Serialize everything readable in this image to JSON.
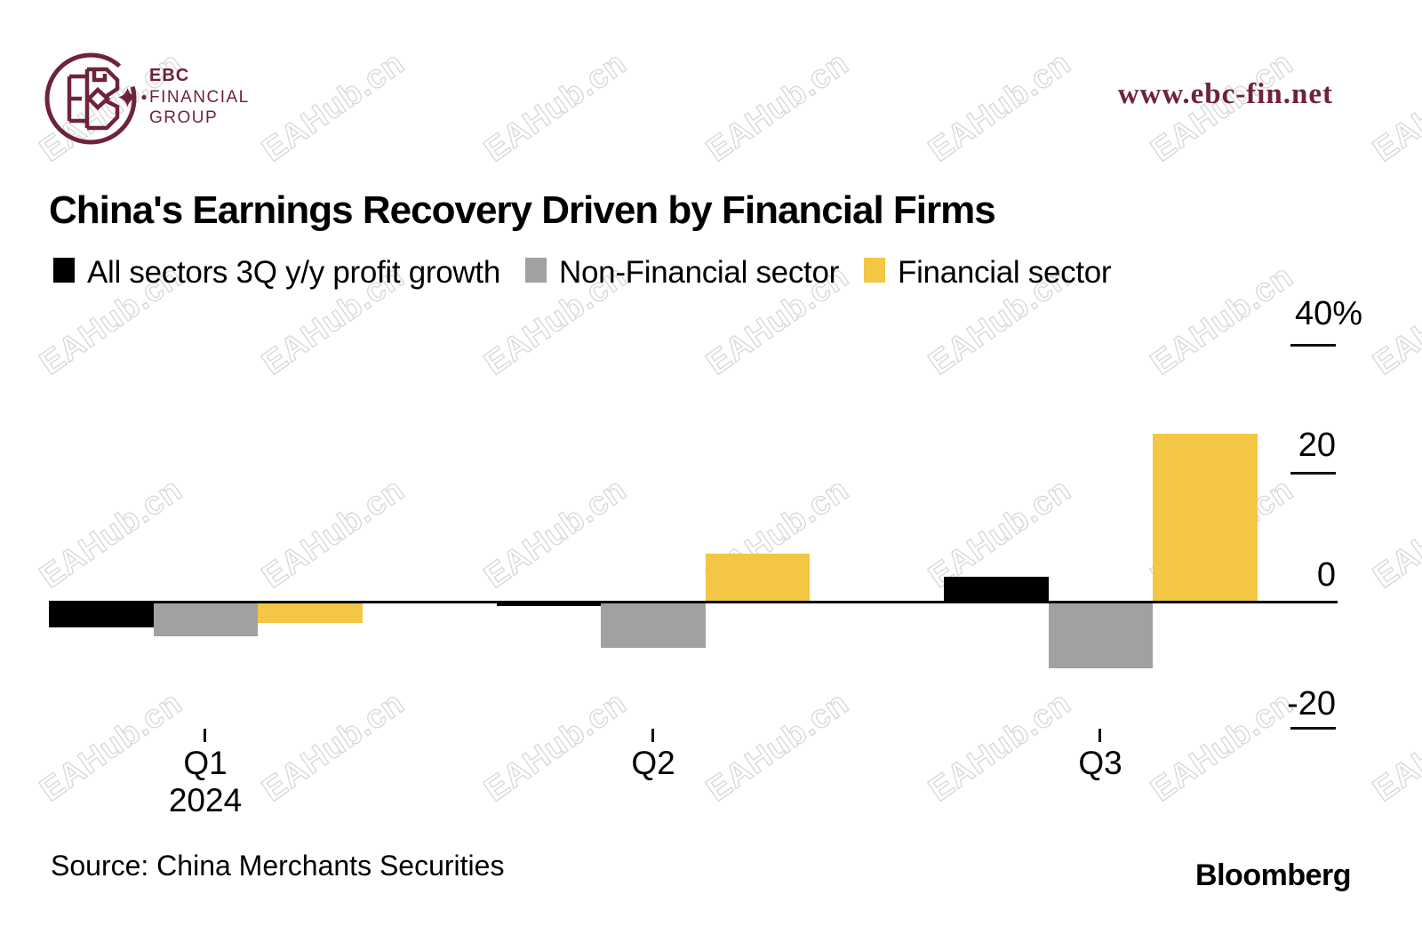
{
  "brand": {
    "name_lines": [
      "EBC",
      "FINANCIAL",
      "GROUP"
    ],
    "website": "www.ebc-fin.net",
    "color": "#6e2438"
  },
  "watermark": {
    "text": "EAHub.cn"
  },
  "chart_data": {
    "type": "bar",
    "title": "China's Earnings Recovery Driven by Financial Firms",
    "categories": [
      "Q1 2024",
      "Q2",
      "Q3"
    ],
    "x_labels": [
      [
        "Q1",
        "2024"
      ],
      [
        "Q2"
      ],
      [
        "Q3"
      ]
    ],
    "series": [
      {
        "key": "all-sectors",
        "name": "All sectors 3Q y/y profit growth",
        "color": "#000000",
        "values": [
          -4,
          -0.6,
          3.9
        ]
      },
      {
        "key": "non-financial",
        "name": "Non-Financial sector",
        "color": "#a1a1a1",
        "values": [
          -5.4,
          -7.2,
          -10.3
        ]
      },
      {
        "key": "financial",
        "name": "Financial sector",
        "color": "#f3c644",
        "values": [
          -3.2,
          7.6,
          26.3
        ]
      }
    ],
    "y_axis": {
      "side": "right",
      "unit": "%",
      "ticks": [
        40,
        20,
        0,
        -20
      ],
      "tick_labels": [
        "40%",
        "20",
        "0",
        "-20"
      ],
      "range": [
        -24,
        48
      ]
    },
    "grid": false,
    "legend_position": "top",
    "baseline": 0
  },
  "footer": {
    "source": "Source: China Merchants Securities",
    "credit": "Bloomberg"
  }
}
